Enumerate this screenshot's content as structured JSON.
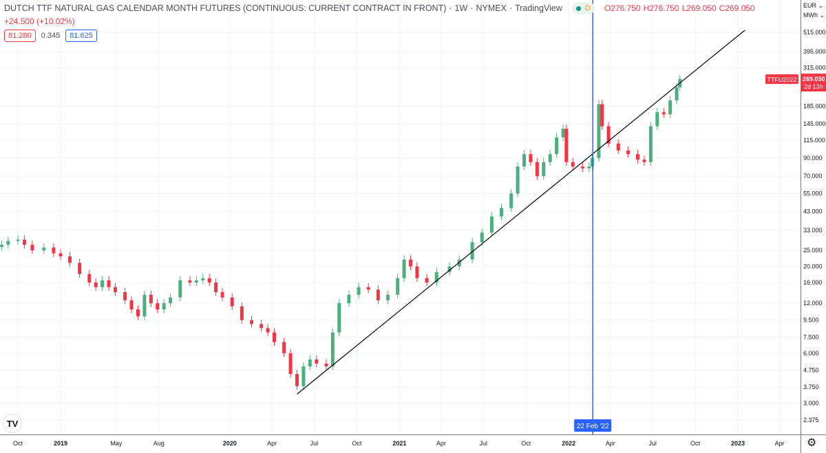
{
  "header": {
    "title": "DUTCH TTF NATURAL GAS CALENDAR MONTH FUTURES (CONTINUOUS: CURRENT CONTRACT IN FRONT)",
    "interval": "1W",
    "exchange": "NYMEX",
    "source": "TradingView",
    "status_badge": "D",
    "open": "O276.750",
    "high": "H276.750",
    "low": "L269.050",
    "close": "C269.050",
    "change": "+24.500 (+10.02%)"
  },
  "legend": {
    "bid": "81.280",
    "spread": "0.345",
    "ask": "81.625"
  },
  "price_axis": {
    "currency": "EUR",
    "unit": "MWh"
  },
  "last_price": {
    "symbol": "TTFU2022",
    "value": "269.050",
    "countdown": "2d 13h"
  },
  "crosshair": {
    "date": "2022-02-22",
    "label": "22 Feb '22"
  },
  "colors": {
    "up": "#4caf7d",
    "down": "#f23645",
    "crosshair": "#2962ff",
    "trendline": "#000000",
    "grid": "#eef2f7"
  },
  "chart_data": {
    "type": "candlestick",
    "scale": "log",
    "grid": true,
    "yticks": [
      "515.000",
      "395.000",
      "315.000",
      "185.000",
      "145.000",
      "115.000",
      "90.000",
      "70.000",
      "55.000",
      "43.000",
      "33.000",
      "25.000",
      "20.000",
      "16.000",
      "12.000",
      "9.500",
      "7.500",
      "6.000",
      "4.750",
      "3.750",
      "3.000",
      "2.375"
    ],
    "xticks": [
      [
        "2018-10-01",
        "Oct"
      ],
      [
        "2019-01-01",
        "2019"
      ],
      [
        "2019-05-01",
        "May"
      ],
      [
        "2019-08-01",
        "Aug"
      ],
      [
        "2020-01-01",
        "2020"
      ],
      [
        "2020-04-01",
        "Apr"
      ],
      [
        "2020-07-01",
        "Jul"
      ],
      [
        "2020-10-01",
        "Oct"
      ],
      [
        "2021-01-01",
        "2021"
      ],
      [
        "2021-04-01",
        "Apr"
      ],
      [
        "2021-07-01",
        "Jul"
      ],
      [
        "2021-10-01",
        "Oct"
      ],
      [
        "2022-01-01",
        "2022"
      ],
      [
        "2022-04-01",
        "Apr"
      ],
      [
        "2022-07-01",
        "Jul"
      ],
      [
        "2022-10-01",
        "Oct"
      ],
      [
        "2023-01-01",
        "2023"
      ],
      [
        "2023-04-01",
        "Apr"
      ]
    ],
    "closes": [
      [
        "2018-08-27",
        27
      ],
      [
        "2018-09-10",
        28.5
      ],
      [
        "2018-10-01",
        29
      ],
      [
        "2018-10-15",
        27
      ],
      [
        "2018-11-01",
        25
      ],
      [
        "2018-11-26",
        26
      ],
      [
        "2018-12-17",
        24
      ],
      [
        "2019-01-01",
        23
      ],
      [
        "2019-01-21",
        21
      ],
      [
        "2019-02-11",
        18
      ],
      [
        "2019-03-04",
        16
      ],
      [
        "2019-03-18",
        15
      ],
      [
        "2019-04-01",
        16.5
      ],
      [
        "2019-04-15",
        15
      ],
      [
        "2019-04-29",
        14
      ],
      [
        "2019-05-20",
        12.5
      ],
      [
        "2019-06-03",
        11
      ],
      [
        "2019-06-17",
        10
      ],
      [
        "2019-07-01",
        13.5
      ],
      [
        "2019-07-15",
        12
      ],
      [
        "2019-07-29",
        11
      ],
      [
        "2019-08-12",
        12
      ],
      [
        "2019-08-26",
        13
      ],
      [
        "2019-09-16",
        16.5
      ],
      [
        "2019-10-07",
        16
      ],
      [
        "2019-10-21",
        16.5
      ],
      [
        "2019-11-04",
        17
      ],
      [
        "2019-11-18",
        16
      ],
      [
        "2019-12-02",
        14
      ],
      [
        "2019-12-16",
        13
      ],
      [
        "2020-01-06",
        11.5
      ],
      [
        "2020-01-27",
        9.5
      ],
      [
        "2020-02-17",
        9
      ],
      [
        "2020-03-09",
        8.5
      ],
      [
        "2020-03-23",
        8
      ],
      [
        "2020-04-06",
        7
      ],
      [
        "2020-04-27",
        6
      ],
      [
        "2020-05-11",
        4.5
      ],
      [
        "2020-05-25",
        3.8
      ],
      [
        "2020-06-08",
        5
      ],
      [
        "2020-06-22",
        5.5
      ],
      [
        "2020-07-06",
        5.2
      ],
      [
        "2020-07-27",
        5
      ],
      [
        "2020-08-10",
        8
      ],
      [
        "2020-08-24",
        12
      ],
      [
        "2020-09-14",
        13.5
      ],
      [
        "2020-10-05",
        15
      ],
      [
        "2020-10-26",
        14.5
      ],
      [
        "2020-11-16",
        12.5
      ],
      [
        "2020-12-07",
        13.5
      ],
      [
        "2020-12-28",
        17
      ],
      [
        "2021-01-11",
        22
      ],
      [
        "2021-01-25",
        20
      ],
      [
        "2021-02-08",
        17
      ],
      [
        "2021-03-01",
        16
      ],
      [
        "2021-03-22",
        18.5
      ],
      [
        "2021-04-19",
        20
      ],
      [
        "2021-05-10",
        22
      ],
      [
        "2021-06-07",
        28
      ],
      [
        "2021-06-28",
        32
      ],
      [
        "2021-07-19",
        40
      ],
      [
        "2021-08-09",
        45
      ],
      [
        "2021-08-30",
        55
      ],
      [
        "2021-09-13",
        80
      ],
      [
        "2021-09-27",
        95
      ],
      [
        "2021-10-11",
        85
      ],
      [
        "2021-10-25",
        70
      ],
      [
        "2021-11-08",
        85
      ],
      [
        "2021-11-22",
        95
      ],
      [
        "2021-12-06",
        120
      ],
      [
        "2021-12-20",
        135
      ],
      [
        "2021-12-27",
        85
      ],
      [
        "2022-01-10",
        80
      ],
      [
        "2022-01-31",
        78
      ],
      [
        "2022-02-14",
        80
      ],
      [
        "2022-02-21",
        90
      ],
      [
        "2022-03-07",
        190
      ],
      [
        "2022-03-14",
        140
      ],
      [
        "2022-03-28",
        110
      ],
      [
        "2022-04-18",
        100
      ],
      [
        "2022-05-09",
        95
      ],
      [
        "2022-05-30",
        88
      ],
      [
        "2022-06-13",
        85
      ],
      [
        "2022-06-27",
        140
      ],
      [
        "2022-07-11",
        170
      ],
      [
        "2022-07-25",
        165
      ],
      [
        "2022-08-08",
        200
      ],
      [
        "2022-08-22",
        240
      ],
      [
        "2022-08-29",
        269.05
      ]
    ],
    "trendline": {
      "start": [
        "2020-05-25",
        3.4
      ],
      "end": [
        "2023-01-16",
        530
      ]
    }
  }
}
